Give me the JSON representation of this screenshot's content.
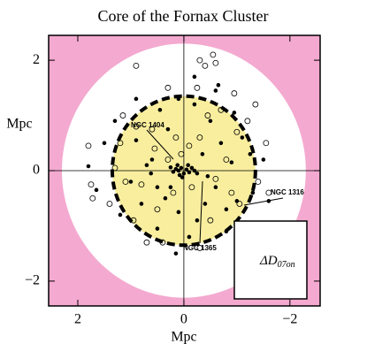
{
  "chart_data": {
    "type": "scatter",
    "title": "Core of the Fornax Cluster",
    "xlabel": "Mpc",
    "ylabel": "Mpc",
    "xlim": [
      2.55,
      -2.57
    ],
    "ylim": [
      -2.45,
      2.45
    ],
    "xticks": [
      2,
      0,
      {
        "value": -2,
        "label": "−2"
      }
    ],
    "yticks": [
      {
        "value": -2,
        "label": "−2"
      },
      0,
      2
    ],
    "background": "#f4a9d0",
    "regions": [
      {
        "r": 2.3,
        "color": "#ffffff"
      },
      {
        "r": 1.35,
        "color": "#f8ee9e"
      }
    ],
    "series": [
      {
        "name": "filled",
        "color": "#000000",
        "filled": true,
        "x": [
          0.05,
          0.1,
          -0.05,
          0,
          0.15,
          -0.1,
          0.08,
          -0.15,
          0.2,
          -0.2,
          0.12,
          -0.08,
          0.03,
          -0.25,
          0.25,
          1.8,
          1.65,
          1.3,
          0.9,
          0.6,
          0.5,
          0.35,
          0.8,
          0.45,
          0.1,
          -0.2,
          -0.5,
          -0.7,
          -0.9,
          -0.6,
          -0.4,
          -0.25,
          0.1,
          0.5,
          -0.1,
          -0.8,
          -1.0,
          -1.3,
          -1.1,
          -0.95,
          -0.6,
          -0.2,
          -0.65,
          0.3,
          0.7,
          1.0,
          1.2,
          0.9,
          -1.5,
          -1.6,
          1.5,
          -0.35,
          0.25,
          -0.45,
          0.62,
          -0.8,
          0.15,
          -1.25
        ],
        "values": [
          0.05,
          0,
          0.02,
          -0.05,
          0.03,
          -0.03,
          -0.08,
          0.05,
          -0.02,
          0,
          0.1,
          0.1,
          -0.12,
          -0.05,
          0.06,
          0.08,
          -0.35,
          0.9,
          0.55,
          0.2,
          -0.3,
          -0.5,
          -0.6,
          1.1,
          1.3,
          1.2,
          0.9,
          0.5,
          0.15,
          -0.3,
          -0.6,
          -0.9,
          -0.75,
          -1.05,
          -1.2,
          -0.7,
          -0.55,
          -0.4,
          0.6,
          1.05,
          1.45,
          1.7,
          1.55,
          0.75,
          0.1,
          -0.2,
          -0.8,
          1.3,
          0.2,
          -0.55,
          0.5,
          0.3,
          -0.3,
          -0.1,
          -0.05,
          -1.1,
          -1.5,
          0.3
        ]
      },
      {
        "name": "open",
        "color": "#000000",
        "filled": false,
        "x": [
          1.8,
          1.75,
          1.72,
          1.1,
          1.2,
          1.15,
          0.95,
          0.7,
          0.4,
          0.9,
          0.6,
          0.55,
          0.3,
          0.15,
          -0.1,
          -0.3,
          -0.45,
          -0.25,
          -0.4,
          -0.6,
          -0.3,
          -0.55,
          -0.95,
          -1.0,
          -1.2,
          -0.8,
          -0.6,
          -0.9,
          -1.05,
          -0.5,
          -0.3,
          0.9,
          0.5,
          0.2,
          -0.15,
          0.05,
          -0.7,
          1.3,
          0.3,
          -1.55,
          -1.4,
          -1.6,
          -1.35,
          -1.0,
          1.4,
          0.8
        ],
        "values": [
          0.45,
          -0.25,
          -0.5,
          -0.2,
          0.5,
          1.0,
          -0.9,
          -1.3,
          -1.3,
          0.8,
          0.75,
          0.4,
          0.2,
          0.6,
          0.45,
          0.6,
          1.0,
          1.5,
          1.9,
          1.95,
          2.0,
          2.1,
          1.4,
          0.7,
          0.9,
          0.2,
          -0.15,
          -0.4,
          -0.6,
          -0.9,
          -1.4,
          1.9,
          -0.7,
          -0.4,
          -0.3,
          0.3,
          1.1,
          0.05,
          1.5,
          0.5,
          -0.2,
          -0.4,
          1.2,
          -1.0,
          -0.6,
          -0.25
        ]
      }
    ],
    "annotations": [
      "NGC 1404",
      "NGC 1365",
      "NGC 1316"
    ],
    "inset_label": {
      "main": "ΔD",
      "sub": "07on"
    }
  }
}
